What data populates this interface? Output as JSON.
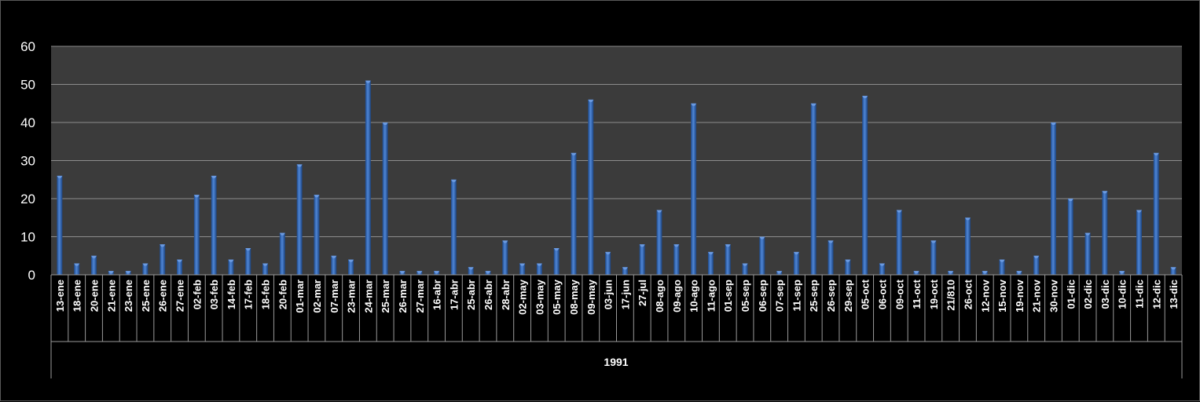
{
  "chart_data": {
    "type": "bar",
    "title": "",
    "xlabel": "",
    "ylabel": "",
    "group_label": "1991",
    "ylim": [
      0,
      60
    ],
    "yticks": [
      0,
      10,
      20,
      30,
      40,
      50,
      60
    ],
    "grid": true,
    "legend": "none",
    "colors": {
      "background": "#000000",
      "plot_area": "#3b3b3b",
      "grid": "#8c8c8c",
      "bar": "#2f63b0",
      "bar_highlight": "#6b9ae0",
      "text": "#ffffff"
    },
    "categories": [
      "13-ene",
      "18-ene",
      "20-ene",
      "21-ene",
      "23-ene",
      "25-ene",
      "26-ene",
      "27-ene",
      "02-feb",
      "03-feb",
      "14-feb",
      "17-feb",
      "18-feb",
      "20-feb",
      "01-mar",
      "02-mar",
      "07-mar",
      "23-mar",
      "24-mar",
      "25-mar",
      "26-mar",
      "27-mar",
      "16-abr",
      "17-abr",
      "25-abr",
      "26-abr",
      "28-abr",
      "02-may",
      "03-may",
      "05-may",
      "08-may",
      "09-may",
      "03-jun",
      "17-jun",
      "27-jul",
      "08-ago",
      "09-ago",
      "10-ago",
      "11-ago",
      "01-sep",
      "05-sep",
      "06-sep",
      "07-sep",
      "11-sep",
      "25-sep",
      "26-sep",
      "29-sep",
      "05-oct",
      "06-oct",
      "09-oct",
      "11-oct",
      "19-oct",
      "21/810",
      "26-oct",
      "12-nov",
      "15-nov",
      "19-nov",
      "21-nov",
      "30-nov",
      "01-dic",
      "02-dic",
      "03-dic",
      "10-dic",
      "11-dic",
      "12-dic",
      "13-dic"
    ],
    "values": [
      26,
      3,
      5,
      1,
      1,
      3,
      8,
      4,
      21,
      26,
      4,
      7,
      3,
      11,
      29,
      21,
      5,
      4,
      51,
      40,
      1,
      1,
      1,
      25,
      2,
      1,
      9,
      3,
      3,
      7,
      32,
      46,
      6,
      2,
      8,
      17,
      8,
      45,
      6,
      8,
      3,
      10,
      1,
      6,
      45,
      9,
      4,
      47,
      3,
      17,
      1,
      9,
      1,
      15,
      1,
      4,
      1,
      5,
      40,
      20,
      11,
      22,
      1,
      17,
      32,
      2
    ]
  }
}
